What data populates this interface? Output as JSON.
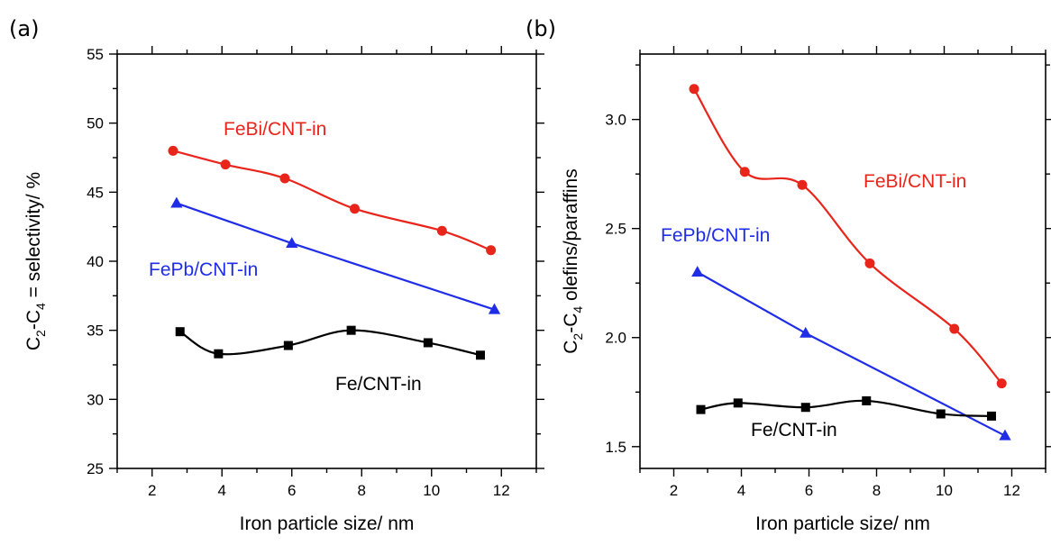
{
  "colors": {
    "fe": "#000000",
    "febi": "#e8241b",
    "fepb": "#1f2ee6"
  },
  "chart_data": [
    {
      "panel_label": "(a)",
      "type": "line",
      "xlabel": "Iron particle size/ nm",
      "ylabel": {
        "pre": "C",
        "sub1": "2",
        "mid": "-C",
        "sub2": "4",
        "post": " = selectivity/ %"
      },
      "xlim": [
        1,
        13
      ],
      "ylim": [
        25,
        55
      ],
      "xticks": [
        2,
        4,
        6,
        8,
        10,
        12
      ],
      "yticks": [
        25,
        30,
        35,
        40,
        45,
        50,
        55
      ],
      "grid": false,
      "series": [
        {
          "name": "FeBi/CNT-in",
          "marker": "circle",
          "curve": "smooth",
          "points": [
            [
              2.6,
              48.0
            ],
            [
              4.1,
              47.0
            ],
            [
              5.8,
              46.0
            ],
            [
              7.8,
              43.8
            ],
            [
              10.3,
              42.2
            ],
            [
              11.7,
              40.8
            ]
          ]
        },
        {
          "name": "FePb/CNT-in",
          "marker": "triangle",
          "curve": "straight",
          "points": [
            [
              2.7,
              44.2
            ],
            [
              6.0,
              41.3
            ],
            [
              11.8,
              36.5
            ]
          ]
        },
        {
          "name": "Fe/CNT-in",
          "marker": "square",
          "curve": "smooth",
          "points": [
            [
              2.8,
              34.9
            ],
            [
              3.9,
              33.3
            ],
            [
              5.9,
              33.9
            ],
            [
              7.7,
              35.0
            ],
            [
              9.9,
              34.1
            ],
            [
              11.4,
              33.2
            ]
          ]
        }
      ]
    },
    {
      "panel_label": "(b)",
      "type": "line",
      "xlabel": "Iron particle size/ nm",
      "ylabel": {
        "pre": "C",
        "sub1": "2",
        "mid": "-C",
        "sub2": "4",
        "post": " olefins/paraffins"
      },
      "xlim": [
        1,
        13
      ],
      "ylim": [
        1.4,
        3.3
      ],
      "xticks": [
        2,
        4,
        6,
        8,
        10,
        12
      ],
      "yticks": [
        1.5,
        2.0,
        2.5,
        3.0
      ],
      "grid": false,
      "series": [
        {
          "name": "FeBi/CNT-in",
          "marker": "circle",
          "curve": "smooth",
          "points": [
            [
              2.6,
              3.14
            ],
            [
              4.1,
              2.76
            ],
            [
              5.8,
              2.7
            ],
            [
              7.8,
              2.34
            ],
            [
              10.3,
              2.04
            ],
            [
              11.7,
              1.79
            ]
          ]
        },
        {
          "name": "FePb/CNT-in",
          "marker": "triangle",
          "curve": "straight",
          "points": [
            [
              2.7,
              2.3
            ],
            [
              5.9,
              2.02
            ],
            [
              11.8,
              1.55
            ]
          ]
        },
        {
          "name": "Fe/CNT-in",
          "marker": "square",
          "curve": "smooth",
          "points": [
            [
              2.8,
              1.67
            ],
            [
              3.9,
              1.7
            ],
            [
              5.9,
              1.68
            ],
            [
              7.7,
              1.71
            ],
            [
              9.9,
              1.65
            ],
            [
              11.4,
              1.64
            ]
          ]
        }
      ]
    }
  ]
}
